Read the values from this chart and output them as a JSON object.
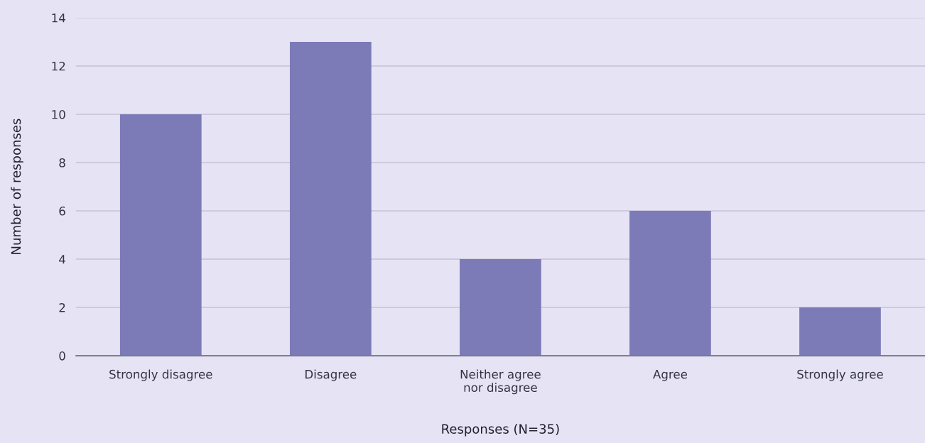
{
  "chart_data": {
    "type": "bar",
    "xlabel": "Responses (N=35)",
    "ylabel": "Number of responses",
    "categories": [
      "Strongly disagree",
      "Disagree",
      "Neither agree\nnor disagree",
      "Agree",
      "Strongly agree"
    ],
    "values": [
      10,
      13,
      4,
      6,
      2
    ],
    "color": "#7c7bb7",
    "ylim": [
      0,
      14
    ],
    "yticks": [
      0,
      2,
      4,
      6,
      8,
      10,
      12,
      14
    ],
    "grid": "y",
    "legend": false
  }
}
